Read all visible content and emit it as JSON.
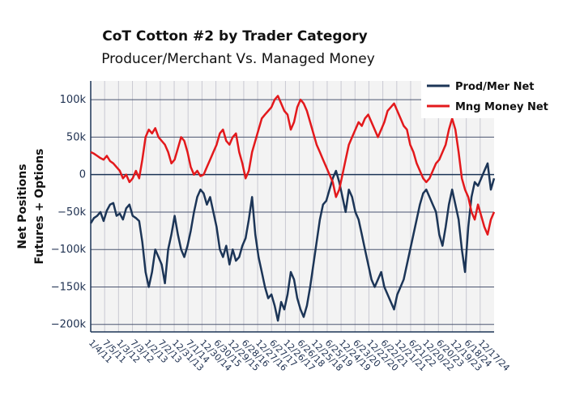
{
  "chart_data": {
    "type": "line",
    "title": "CoT Cotton #2 by Trader Category",
    "subtitle": "Producer/Merchant Vs. Managed Money",
    "ylabel_line1": "Net Positions",
    "ylabel_line2": "Futures + Options",
    "xlabel": "",
    "ylim": [
      -210000,
      125000
    ],
    "y_ticks": [
      {
        "value": 100000,
        "label": "100k"
      },
      {
        "value": 50000,
        "label": "50k"
      },
      {
        "value": 0,
        "label": "0"
      },
      {
        "value": -50000,
        "label": "−50k"
      },
      {
        "value": -100000,
        "label": "−100k"
      },
      {
        "value": -150000,
        "label": "−150k"
      },
      {
        "value": -200000,
        "label": "−200k"
      }
    ],
    "x_ticks": [
      "1/4/11",
      "7/5/11",
      "1/3/12",
      "7/3/12",
      "1/2/13",
      "7/2/13",
      "12/31/13",
      "7/1/14",
      "12/30/14",
      "6/30/15",
      "12/29/15",
      "6/28/16",
      "12/27/16",
      "6/27/17",
      "12/26/17",
      "6/26/18",
      "12/25/18",
      "6/25/19",
      "12/24/19",
      "6/23/20",
      "12/22/20",
      "6/22/21",
      "12/21/21",
      "6/21/22",
      "12/20/22",
      "6/20/23",
      "12/19/23",
      "6/18/24",
      "12/17/24"
    ],
    "legend_position": "top-right",
    "grid": true,
    "series": [
      {
        "name": "Prod/Mer Net",
        "color": "#1c3557",
        "values": [
          -65000,
          -58000,
          -55000,
          -50000,
          -62000,
          -48000,
          -40000,
          -38000,
          -55000,
          -52000,
          -60000,
          -45000,
          -40000,
          -55000,
          -58000,
          -62000,
          -90000,
          -130000,
          -150000,
          -130000,
          -100000,
          -110000,
          -120000,
          -145000,
          -100000,
          -80000,
          -55000,
          -80000,
          -100000,
          -110000,
          -95000,
          -75000,
          -50000,
          -30000,
          -20000,
          -25000,
          -40000,
          -30000,
          -50000,
          -70000,
          -100000,
          -110000,
          -95000,
          -120000,
          -100000,
          -115000,
          -110000,
          -95000,
          -85000,
          -60000,
          -30000,
          -80000,
          -110000,
          -130000,
          -150000,
          -165000,
          -160000,
          -175000,
          -195000,
          -170000,
          -180000,
          -160000,
          -130000,
          -140000,
          -165000,
          -180000,
          -190000,
          -175000,
          -150000,
          -120000,
          -90000,
          -60000,
          -40000,
          -35000,
          -20000,
          -5000,
          5000,
          -10000,
          -30000,
          -50000,
          -20000,
          -30000,
          -50000,
          -60000,
          -80000,
          -100000,
          -120000,
          -140000,
          -150000,
          -140000,
          -130000,
          -150000,
          -160000,
          -170000,
          -180000,
          -160000,
          -150000,
          -140000,
          -120000,
          -100000,
          -80000,
          -60000,
          -40000,
          -25000,
          -20000,
          -30000,
          -40000,
          -50000,
          -80000,
          -95000,
          -70000,
          -40000,
          -20000,
          -40000,
          -60000,
          -100000,
          -130000,
          -70000,
          -30000,
          -10000,
          -15000,
          -5000,
          5000,
          15000,
          -20000,
          -5000
        ]
      },
      {
        "name": "Mng Money Net",
        "color": "#e3191c",
        "values": [
          30000,
          28000,
          25000,
          22000,
          20000,
          25000,
          18000,
          15000,
          10000,
          5000,
          -5000,
          0,
          -10000,
          -5000,
          5000,
          -5000,
          20000,
          50000,
          60000,
          55000,
          62000,
          50000,
          45000,
          40000,
          30000,
          15000,
          20000,
          35000,
          50000,
          45000,
          30000,
          10000,
          0,
          5000,
          -2000,
          0,
          10000,
          20000,
          30000,
          40000,
          55000,
          60000,
          45000,
          40000,
          50000,
          55000,
          30000,
          15000,
          -5000,
          5000,
          30000,
          45000,
          60000,
          75000,
          80000,
          85000,
          90000,
          100000,
          105000,
          95000,
          85000,
          80000,
          60000,
          70000,
          90000,
          100000,
          95000,
          85000,
          70000,
          55000,
          40000,
          30000,
          20000,
          10000,
          0,
          -10000,
          -30000,
          -20000,
          0,
          20000,
          40000,
          50000,
          60000,
          70000,
          65000,
          75000,
          80000,
          70000,
          60000,
          50000,
          60000,
          70000,
          85000,
          90000,
          95000,
          85000,
          75000,
          65000,
          60000,
          40000,
          30000,
          15000,
          5000,
          -5000,
          -10000,
          -5000,
          5000,
          15000,
          20000,
          30000,
          40000,
          60000,
          75000,
          60000,
          30000,
          -5000,
          -20000,
          -30000,
          -50000,
          -60000,
          -40000,
          -55000,
          -70000,
          -80000,
          -60000,
          -50000
        ]
      }
    ]
  }
}
